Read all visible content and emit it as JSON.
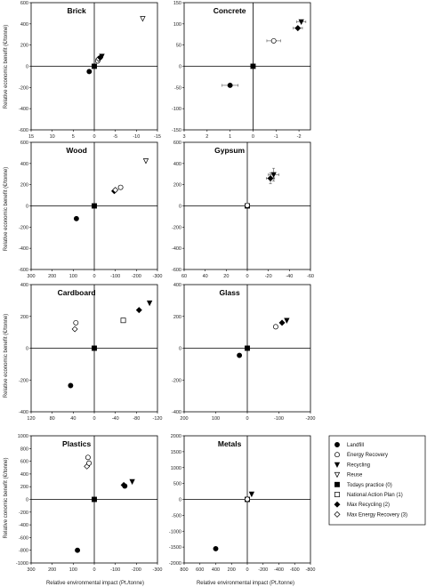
{
  "markers": [
    {
      "key": "landfill",
      "label": "Landfill",
      "shape": "circle",
      "fill": "#000000"
    },
    {
      "key": "energy_recovery",
      "label": "Energy Recovery",
      "shape": "circle",
      "fill": "#ffffff"
    },
    {
      "key": "recycling",
      "label": "Recycling",
      "shape": "tri-down",
      "fill": "#000000"
    },
    {
      "key": "reuse",
      "label": "Reuse",
      "shape": "tri-down",
      "fill": "#ffffff"
    },
    {
      "key": "todays_practice",
      "label": "Todays practice (0)",
      "shape": "square",
      "fill": "#000000"
    },
    {
      "key": "national_action_plan",
      "label": "National Action Plan (1)",
      "shape": "square",
      "fill": "#ffffff"
    },
    {
      "key": "max_recycling",
      "label": "Max Recycling (2)",
      "shape": "diamond",
      "fill": "#000000"
    },
    {
      "key": "max_energy_recovery",
      "label": "Max Energy Recovery (3)",
      "shape": "diamond",
      "fill": "#ffffff"
    }
  ],
  "axis_labels": {
    "ylabel_1": "Relative economic benefit (€/tonne)",
    "ylabel_2": "Relative economic benefit (€/tonne)",
    "ylabel_3": "Relative economic benefit (€/tonne)",
    "ylabel_4": "Relative conomic benefit (€/tonne)",
    "xlabel_left": "Relative environmental impact (Pt./tonne)",
    "xlabel_right": "Relative environmental impact (Pt./tonne)"
  },
  "chart_data": [
    {
      "type": "scatter",
      "title": "Brick",
      "xlim": [
        15,
        -15
      ],
      "ylim": [
        -600,
        600
      ],
      "xticks": [
        15,
        10,
        5,
        0,
        -5,
        -10,
        -15
      ],
      "yticks": [
        -600,
        -400,
        -200,
        0,
        200,
        400,
        600
      ],
      "points": [
        {
          "key": "landfill",
          "x": 1.2,
          "y": -50
        },
        {
          "key": "todays_practice",
          "x": 0,
          "y": 0
        },
        {
          "key": "energy_recovery",
          "x": -0.8,
          "y": 50
        },
        {
          "key": "max_energy_recovery",
          "x": -1.0,
          "y": 70
        },
        {
          "key": "max_recycling",
          "x": -1.4,
          "y": 82
        },
        {
          "key": "recycling",
          "x": -1.8,
          "y": 95
        },
        {
          "key": "reuse",
          "x": -11.5,
          "y": 450
        }
      ]
    },
    {
      "type": "scatter",
      "title": "Concrete",
      "xlim": [
        3,
        -2.5
      ],
      "ylim": [
        -150,
        150
      ],
      "xticks": [
        3,
        2,
        1,
        0,
        -1,
        -2
      ],
      "yticks": [
        -150,
        -100,
        -50,
        0,
        50,
        100,
        150
      ],
      "points": [
        {
          "key": "landfill",
          "x": 1.0,
          "y": -45,
          "xerr": 0.35
        },
        {
          "key": "todays_practice",
          "x": 0,
          "y": 0
        },
        {
          "key": "energy_recovery",
          "x": -0.9,
          "y": 60,
          "xerr": 0.3
        },
        {
          "key": "max_recycling",
          "x": -1.95,
          "y": 90,
          "xerr": 0.2
        },
        {
          "key": "recycling",
          "x": -2.1,
          "y": 105,
          "xerr": 0.2
        }
      ]
    },
    {
      "type": "scatter",
      "title": "Wood",
      "xlim": [
        300,
        -300
      ],
      "ylim": [
        -600,
        600
      ],
      "xticks": [
        300,
        200,
        100,
        0,
        -100,
        -200,
        -300
      ],
      "yticks": [
        -600,
        -400,
        -200,
        0,
        200,
        400,
        600
      ],
      "points": [
        {
          "key": "landfill",
          "x": 85,
          "y": -120
        },
        {
          "key": "todays_practice",
          "x": 0,
          "y": 0
        },
        {
          "key": "max_recycling",
          "x": -95,
          "y": 140
        },
        {
          "key": "max_energy_recovery",
          "x": -100,
          "y": 150
        },
        {
          "key": "energy_recovery",
          "x": -125,
          "y": 175
        },
        {
          "key": "reuse",
          "x": -245,
          "y": 425
        }
      ]
    },
    {
      "type": "scatter",
      "title": "Gypsum",
      "xlim": [
        60,
        -60
      ],
      "ylim": [
        -600,
        600
      ],
      "xticks": [
        60,
        40,
        20,
        0,
        -20,
        -40,
        -60
      ],
      "yticks": [
        -600,
        -400,
        -200,
        0,
        200,
        400,
        600
      ],
      "points": [
        {
          "key": "todays_practice",
          "x": 0,
          "y": 0
        },
        {
          "key": "energy_recovery",
          "x": 0,
          "y": 5
        },
        {
          "key": "recycling",
          "x": -25,
          "y": 295,
          "xerr": 5,
          "yerr": 60
        },
        {
          "key": "max_recycling",
          "x": -22,
          "y": 260,
          "xerr": 4,
          "yerr": 50
        }
      ]
    },
    {
      "type": "scatter",
      "title": "Cardboard",
      "xlim": [
        120,
        -120
      ],
      "ylim": [
        -400,
        400
      ],
      "xticks": [
        120,
        80,
        40,
        0,
        -40,
        -80,
        -120
      ],
      "yticks": [
        -400,
        -200,
        0,
        200,
        400
      ],
      "points": [
        {
          "key": "landfill",
          "x": 45,
          "y": -235
        },
        {
          "key": "todays_practice",
          "x": 0,
          "y": 0
        },
        {
          "key": "energy_recovery",
          "x": 35,
          "y": 160
        },
        {
          "key": "max_energy_recovery",
          "x": 37,
          "y": 120
        },
        {
          "key": "national_action_plan",
          "x": -55,
          "y": 175
        },
        {
          "key": "max_recycling",
          "x": -85,
          "y": 240
        },
        {
          "key": "recycling",
          "x": -105,
          "y": 285
        }
      ]
    },
    {
      "type": "scatter",
      "title": "Glass",
      "xlim": [
        200,
        -200
      ],
      "ylim": [
        -400,
        400
      ],
      "xticks": [
        200,
        100,
        0,
        -100,
        -200
      ],
      "yticks": [
        -400,
        -200,
        0,
        200,
        400
      ],
      "points": [
        {
          "key": "landfill",
          "x": 25,
          "y": -45
        },
        {
          "key": "todays_practice",
          "x": 0,
          "y": 0
        },
        {
          "key": "energy_recovery",
          "x": -90,
          "y": 135
        },
        {
          "key": "max_recycling",
          "x": -110,
          "y": 160
        },
        {
          "key": "recycling",
          "x": -125,
          "y": 175
        }
      ]
    },
    {
      "type": "scatter",
      "title": "Plastics",
      "xlim": [
        300,
        -300
      ],
      "ylim": [
        -1000,
        1000
      ],
      "xticks": [
        300,
        200,
        100,
        0,
        -100,
        -200,
        -300
      ],
      "yticks": [
        -1000,
        -800,
        -600,
        -400,
        -200,
        0,
        200,
        400,
        600,
        800,
        1000
      ],
      "points": [
        {
          "key": "landfill",
          "x": 80,
          "y": -800
        },
        {
          "key": "todays_practice",
          "x": 0,
          "y": 0
        },
        {
          "key": "energy_recovery",
          "x": 30,
          "y": 660
        },
        {
          "key": "max_energy_recovery",
          "x": 35,
          "y": 520
        },
        {
          "key": "energy_recovery",
          "x": 25,
          "y": 570
        },
        {
          "key": "max_recycling",
          "x": -140,
          "y": 225
        },
        {
          "key": "landfill",
          "x": -145,
          "y": 210
        },
        {
          "key": "recycling",
          "x": -180,
          "y": 280
        }
      ]
    },
    {
      "type": "scatter",
      "title": "Metals",
      "xlim": [
        800,
        -800
      ],
      "ylim": [
        -2000,
        2000
      ],
      "xticks": [
        800,
        600,
        400,
        200,
        0,
        -200,
        -400,
        -600,
        -800
      ],
      "yticks": [
        -2000,
        -1500,
        -1000,
        -500,
        0,
        500,
        1000,
        1500,
        2000
      ],
      "points": [
        {
          "key": "landfill",
          "x": 400,
          "y": -1550
        },
        {
          "key": "todays_practice",
          "x": 0,
          "y": 0
        },
        {
          "key": "energy_recovery",
          "x": 0,
          "y": 5
        },
        {
          "key": "recycling",
          "x": -55,
          "y": 170
        }
      ]
    }
  ]
}
